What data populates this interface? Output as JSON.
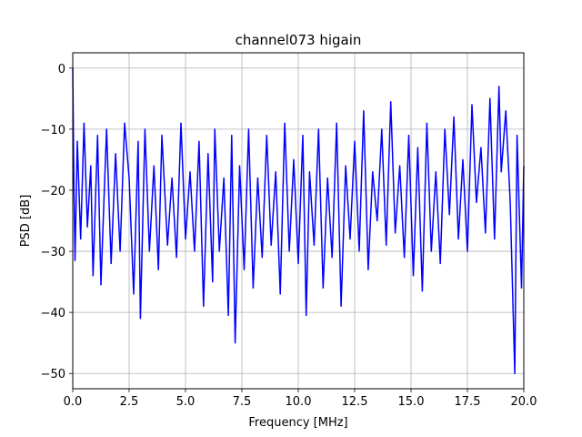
{
  "chart_data": {
    "type": "line",
    "title": "channel073 higain",
    "xlabel": "Frequency [MHz]",
    "ylabel": "PSD [dB]",
    "xlim": [
      0,
      20
    ],
    "ylim": [
      -52.5,
      2.5
    ],
    "xticks": [
      0,
      2.5,
      5,
      7.5,
      10,
      12.5,
      15,
      17.5,
      20
    ],
    "xtick_labels": [
      "0.0",
      "2.5",
      "5.0",
      "7.5",
      "10.0",
      "12.5",
      "15.0",
      "17.5",
      "20.0"
    ],
    "yticks": [
      0,
      -10,
      -20,
      -30,
      -40,
      -50
    ],
    "ytick_labels": [
      "0",
      "−10",
      "−20",
      "−30",
      "−40",
      "−50"
    ],
    "grid": true,
    "series": [
      {
        "color": "#0000ff",
        "x": [
          0.0,
          0.05,
          0.1,
          0.2,
          0.35,
          0.5,
          0.65,
          0.8,
          0.9,
          1.1,
          1.25,
          1.4,
          1.5,
          1.7,
          1.9,
          2.1,
          2.3,
          2.5,
          2.7,
          2.9,
          3.0,
          3.2,
          3.4,
          3.6,
          3.8,
          3.95,
          4.2,
          4.4,
          4.6,
          4.8,
          5.0,
          5.2,
          5.4,
          5.6,
          5.8,
          6.0,
          6.2,
          6.3,
          6.5,
          6.7,
          6.9,
          7.05,
          7.2,
          7.4,
          7.6,
          7.8,
          8.0,
          8.2,
          8.4,
          8.6,
          8.8,
          9.0,
          9.2,
          9.4,
          9.6,
          9.8,
          10.0,
          10.2,
          10.35,
          10.5,
          10.7,
          10.9,
          11.1,
          11.3,
          11.5,
          11.7,
          11.9,
          12.1,
          12.3,
          12.5,
          12.7,
          12.9,
          13.1,
          13.3,
          13.5,
          13.7,
          13.9,
          14.1,
          14.3,
          14.5,
          14.7,
          14.9,
          15.1,
          15.3,
          15.5,
          15.7,
          15.9,
          16.1,
          16.3,
          16.5,
          16.7,
          16.9,
          17.1,
          17.3,
          17.5,
          17.7,
          17.9,
          18.1,
          18.3,
          18.5,
          18.7,
          18.9,
          19.0,
          19.2,
          19.4,
          19.6,
          19.7,
          19.9,
          20.0
        ],
        "y": [
          0.0,
          -18,
          -31.5,
          -12,
          -28,
          -9,
          -26,
          -16,
          -34,
          -11,
          -35.5,
          -20,
          -10,
          -32,
          -14,
          -30,
          -9,
          -18,
          -37,
          -12,
          -41,
          -10,
          -30,
          -16,
          -33,
          -11,
          -29,
          -18,
          -31,
          -9,
          -28,
          -17,
          -30,
          -12,
          -39,
          -14,
          -35,
          -10,
          -30,
          -18,
          -40.5,
          -11,
          -45,
          -16,
          -33,
          -10,
          -36,
          -18,
          -31,
          -11,
          -29,
          -17,
          -37,
          -9,
          -30,
          -15,
          -32,
          -11,
          -40.5,
          -17,
          -29,
          -10,
          -36,
          -18,
          -31,
          -9,
          -39,
          -16,
          -28,
          -12,
          -30,
          -7,
          -33,
          -17,
          -25,
          -10,
          -29,
          -5.5,
          -27,
          -16,
          -31,
          -11,
          -34,
          -13,
          -36.5,
          -9,
          -30,
          -17,
          -32,
          -10,
          -24,
          -8,
          -28,
          -15,
          -30,
          -6,
          -22,
          -13,
          -27,
          -5,
          -28,
          -3,
          -17,
          -7,
          -22,
          -50,
          -11,
          -36,
          -16
        ]
      }
    ]
  }
}
